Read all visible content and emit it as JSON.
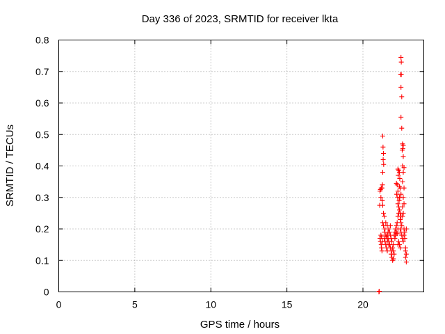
{
  "chart_data": {
    "type": "scatter",
    "title": "Day 336 of 2023, SRMTID for receiver lkta",
    "xlabel": "GPS time / hours",
    "ylabel": "SRMTID / TECUs",
    "xlim": [
      0,
      24.0
    ],
    "ylim": [
      0,
      0.8
    ],
    "xticks": [
      0,
      5,
      10,
      15,
      20
    ],
    "xtick_labels": [
      "0",
      "5",
      "10",
      "15",
      "20"
    ],
    "yticks": [
      0,
      0.1,
      0.2,
      0.3,
      0.4,
      0.5,
      0.6,
      0.7,
      0.8
    ],
    "ytick_labels": [
      "0",
      "0.1",
      "0.2",
      "0.3",
      "0.4",
      "0.5",
      "0.6",
      "0.7",
      "0.8"
    ],
    "grid": true,
    "marker": "plus",
    "color": "#ff0000",
    "series": [
      {
        "name": "SRMTID",
        "points": [
          [
            21.05,
            0.0
          ],
          [
            21.07,
            0.002
          ],
          [
            21.1,
            0.275
          ],
          [
            21.12,
            0.32
          ],
          [
            21.15,
            0.325
          ],
          [
            21.18,
            0.3
          ],
          [
            21.2,
            0.33
          ],
          [
            21.12,
            0.17
          ],
          [
            21.15,
            0.16
          ],
          [
            21.18,
            0.18
          ],
          [
            21.2,
            0.15
          ],
          [
            21.22,
            0.14
          ],
          [
            21.25,
            0.13
          ],
          [
            21.22,
            0.175
          ],
          [
            21.28,
            0.16
          ],
          [
            21.3,
            0.495
          ],
          [
            21.32,
            0.46
          ],
          [
            21.35,
            0.44
          ],
          [
            21.33,
            0.42
          ],
          [
            21.36,
            0.405
          ],
          [
            21.3,
            0.38
          ],
          [
            21.28,
            0.34
          ],
          [
            21.25,
            0.33
          ],
          [
            21.27,
            0.29
          ],
          [
            21.3,
            0.275
          ],
          [
            21.35,
            0.25
          ],
          [
            21.4,
            0.24
          ],
          [
            21.3,
            0.22
          ],
          [
            21.35,
            0.21
          ],
          [
            21.4,
            0.19
          ],
          [
            21.45,
            0.2
          ],
          [
            21.5,
            0.18
          ],
          [
            21.55,
            0.175
          ],
          [
            21.6,
            0.16
          ],
          [
            21.65,
            0.17
          ],
          [
            21.7,
            0.15
          ],
          [
            21.4,
            0.17
          ],
          [
            21.45,
            0.16
          ],
          [
            21.5,
            0.15
          ],
          [
            21.55,
            0.14
          ],
          [
            21.6,
            0.13
          ],
          [
            21.5,
            0.22
          ],
          [
            21.6,
            0.21
          ],
          [
            21.7,
            0.2
          ],
          [
            21.75,
            0.19
          ],
          [
            21.8,
            0.21
          ],
          [
            21.8,
            0.18
          ],
          [
            21.85,
            0.17
          ],
          [
            21.9,
            0.16
          ],
          [
            21.95,
            0.14
          ],
          [
            22.0,
            0.15
          ],
          [
            21.85,
            0.12
          ],
          [
            21.9,
            0.11
          ],
          [
            21.95,
            0.1
          ],
          [
            22.0,
            0.105
          ],
          [
            22.05,
            0.12
          ],
          [
            21.9,
            0.13
          ],
          [
            22.0,
            0.13
          ],
          [
            22.05,
            0.18
          ],
          [
            22.1,
            0.19
          ],
          [
            22.15,
            0.2
          ],
          [
            21.7,
            0.16
          ],
          [
            21.75,
            0.15
          ],
          [
            21.8,
            0.14
          ],
          [
            21.65,
            0.19
          ],
          [
            21.6,
            0.18
          ],
          [
            22.1,
            0.17
          ],
          [
            22.15,
            0.18
          ],
          [
            22.2,
            0.19
          ],
          [
            22.25,
            0.185
          ],
          [
            22.3,
            0.2
          ],
          [
            22.2,
            0.21
          ],
          [
            22.25,
            0.22
          ],
          [
            22.3,
            0.24
          ],
          [
            22.35,
            0.25
          ],
          [
            22.4,
            0.26
          ],
          [
            22.2,
            0.345
          ],
          [
            22.25,
            0.34
          ],
          [
            22.3,
            0.32
          ],
          [
            22.22,
            0.31
          ],
          [
            22.28,
            0.3
          ],
          [
            22.3,
            0.28
          ],
          [
            22.35,
            0.27
          ],
          [
            22.38,
            0.29
          ],
          [
            22.4,
            0.3
          ],
          [
            22.3,
            0.39
          ],
          [
            22.35,
            0.385
          ],
          [
            22.4,
            0.38
          ],
          [
            22.32,
            0.37
          ],
          [
            22.42,
            0.36
          ],
          [
            22.4,
            0.335
          ],
          [
            22.45,
            0.33
          ],
          [
            22.5,
            0.31
          ],
          [
            22.42,
            0.3
          ],
          [
            22.45,
            0.25
          ],
          [
            22.5,
            0.24
          ],
          [
            22.45,
            0.23
          ],
          [
            22.5,
            0.22
          ],
          [
            22.55,
            0.21
          ],
          [
            22.45,
            0.2
          ],
          [
            22.5,
            0.19
          ],
          [
            22.55,
            0.18
          ],
          [
            22.6,
            0.17
          ],
          [
            22.4,
            0.15
          ],
          [
            22.45,
            0.14
          ],
          [
            22.3,
            0.15
          ],
          [
            22.35,
            0.16
          ],
          [
            22.5,
            0.745
          ],
          [
            22.52,
            0.73
          ],
          [
            22.48,
            0.69
          ],
          [
            22.52,
            0.69
          ],
          [
            22.5,
            0.65
          ],
          [
            22.55,
            0.62
          ],
          [
            22.5,
            0.555
          ],
          [
            22.55,
            0.52
          ],
          [
            22.6,
            0.47
          ],
          [
            22.65,
            0.465
          ],
          [
            22.62,
            0.455
          ],
          [
            22.58,
            0.45
          ],
          [
            22.65,
            0.43
          ],
          [
            22.6,
            0.4
          ],
          [
            22.7,
            0.395
          ],
          [
            22.65,
            0.38
          ],
          [
            22.6,
            0.35
          ],
          [
            22.7,
            0.33
          ],
          [
            22.65,
            0.3
          ],
          [
            22.7,
            0.28
          ],
          [
            22.6,
            0.27
          ],
          [
            22.65,
            0.25
          ],
          [
            22.6,
            0.24
          ],
          [
            22.7,
            0.2
          ],
          [
            22.75,
            0.19
          ],
          [
            22.7,
            0.18
          ],
          [
            22.65,
            0.16
          ],
          [
            22.8,
            0.14
          ],
          [
            22.8,
            0.13
          ],
          [
            22.85,
            0.12
          ],
          [
            22.8,
            0.11
          ],
          [
            22.85,
            0.095
          ],
          [
            22.75,
            0.17
          ],
          [
            22.85,
            0.2
          ]
        ]
      }
    ]
  }
}
